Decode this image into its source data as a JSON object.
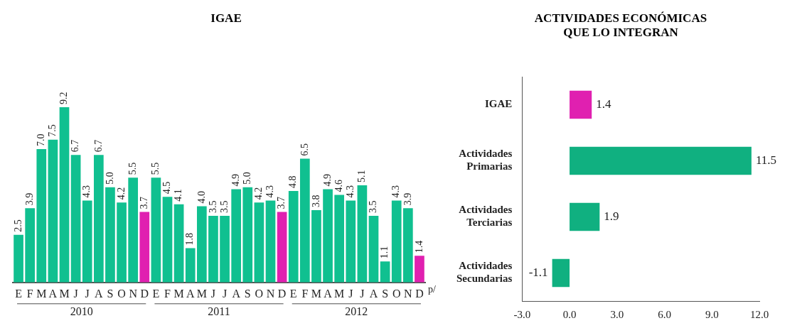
{
  "chart_data": [
    {
      "type": "bar",
      "title": "IGAE",
      "categories": [
        "E",
        "F",
        "M",
        "A",
        "M",
        "J",
        "J",
        "A",
        "S",
        "O",
        "N",
        "D",
        "E",
        "F",
        "M",
        "A",
        "M",
        "J",
        "J",
        "A",
        "S",
        "O",
        "N",
        "D",
        "E",
        "F",
        "M",
        "A",
        "M",
        "J",
        "J",
        "A",
        "S",
        "O",
        "N",
        "D"
      ],
      "values": [
        2.5,
        3.9,
        7.0,
        7.5,
        9.2,
        6.7,
        4.3,
        6.7,
        5.0,
        4.2,
        5.5,
        3.7,
        5.5,
        4.5,
        4.1,
        1.8,
        4.0,
        3.5,
        3.5,
        4.9,
        5.0,
        4.2,
        4.3,
        3.7,
        4.8,
        6.5,
        3.8,
        4.9,
        4.6,
        4.3,
        5.1,
        3.5,
        1.1,
        4.3,
        3.9,
        1.4
      ],
      "colors": [
        "#10c090",
        "#10c090",
        "#10c090",
        "#10c090",
        "#10c090",
        "#10c090",
        "#10c090",
        "#10c090",
        "#10c090",
        "#10c090",
        "#10c090",
        "#e020b0",
        "#10c090",
        "#10c090",
        "#10c090",
        "#10c090",
        "#10c090",
        "#10c090",
        "#10c090",
        "#10c090",
        "#10c090",
        "#10c090",
        "#10c090",
        "#e020b0",
        "#10c090",
        "#10c090",
        "#10c090",
        "#10c090",
        "#10c090",
        "#10c090",
        "#10c090",
        "#10c090",
        "#10c090",
        "#10c090",
        "#10c090",
        "#e020b0"
      ],
      "value_labels": [
        "2.5",
        "3.9",
        "7.0",
        "7.5",
        "9.2",
        "6.7",
        "4.3",
        "6.7",
        "5.0",
        "4.2",
        "5.5",
        "3.7",
        "5.5",
        "4.5",
        "4.1",
        "1.8",
        "4.0",
        "3.5",
        "3.5",
        "4.9",
        "5.0",
        "4.2",
        "4.3",
        "3.7",
        "4.8",
        "6.5",
        "3.8",
        "4.9",
        "4.6",
        "4.3",
        "5.1",
        "3.5",
        "1.1",
        "4.3",
        "3.9",
        "1.4"
      ],
      "grid": false,
      "legend": false,
      "tick_labels": "x",
      "annotations": [
        "2010",
        "2011",
        "2012",
        "p/"
      ]
    },
    {
      "type": "bar",
      "orientation": "horizontal",
      "title": "ACTIVIDADES ECONÓMICAS QUE LO INTEGRAN",
      "categories": [
        "IGAE",
        "Actividades Primarias",
        "Actividades Terciarias",
        "Actividades Secundarias"
      ],
      "values": [
        1.4,
        11.5,
        1.9,
        -1.1
      ],
      "colors": [
        "#e020b0",
        "#10b080",
        "#10b080",
        "#10b080"
      ],
      "xlim": [
        -3,
        12
      ],
      "xticks": [
        {
          "value": -3,
          "label": "-3.0"
        },
        {
          "value": 0,
          "label": "0.0"
        },
        {
          "value": 3,
          "label": "3.0"
        },
        {
          "value": 6,
          "label": "6.0"
        },
        {
          "value": 9,
          "label": "9.0"
        },
        {
          "value": 12,
          "label": "12.0"
        }
      ],
      "value_labels": [
        "1.4",
        "11.5",
        "1.9",
        "-1.1"
      ],
      "grid": false,
      "legend": false
    }
  ]
}
